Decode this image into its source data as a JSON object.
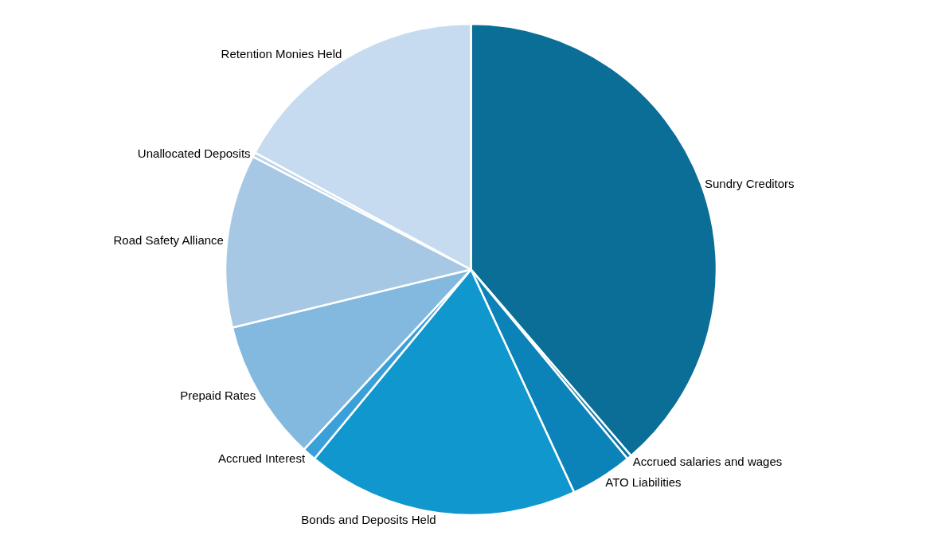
{
  "chart_data": {
    "type": "pie",
    "categories": [
      "Sundry Creditors",
      "Accrued salaries and wages",
      "ATO Liabilities",
      "Bonds and Deposits Held",
      "Accrued Interest",
      "Prepaid Rates",
      "Road Safety Alliance",
      "Unallocated Deposits",
      "Retention Monies Held"
    ],
    "values": [
      38.7,
      0.3,
      4.1,
      17.9,
      0.9,
      9.3,
      11.4,
      0.3,
      17.1
    ],
    "colors": [
      "#0a6e96",
      "#0a78a6",
      "#0b83b8",
      "#1097cd",
      "#3aa0d8",
      "#84b9df",
      "#a7c8e4",
      "#b8d3ec",
      "#c6dbef"
    ],
    "legend": false
  }
}
